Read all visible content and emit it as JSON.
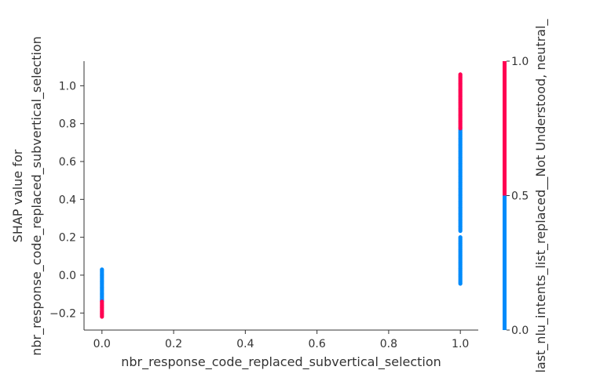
{
  "chart_data": {
    "type": "scatter",
    "title": "",
    "xlabel": "nbr_response_code_replaced_subvertical_selection",
    "ylabel_lines": [
      "SHAP value for",
      "nbr_response_code_replaced_subvertical_selection"
    ],
    "xlim": [
      -0.05,
      1.05
    ],
    "ylim": [
      -0.29,
      1.13
    ],
    "xticks": [
      0.0,
      0.2,
      0.4,
      0.6,
      0.8,
      1.0
    ],
    "xtick_labels": [
      "0.0",
      "0.2",
      "0.4",
      "0.6",
      "0.8",
      "1.0"
    ],
    "yticks": [
      -0.2,
      0.0,
      0.2,
      0.4,
      0.6,
      0.8,
      1.0
    ],
    "ytick_labels": [
      "−0.2",
      "0.0",
      "0.2",
      "0.4",
      "0.6",
      "0.8",
      "1.0"
    ],
    "grid": false,
    "point_colors": {
      "low": "#008bfb",
      "high": "#ff0052"
    },
    "colorbar": {
      "label": "last_nlu_intents_list_replaced__Not Understood, neutral_",
      "ticks": [
        0.0,
        0.5,
        1.0
      ],
      "tick_labels": [
        "0.0",
        "0.5",
        "1.0"
      ],
      "split_value": 0.5
    },
    "series": [
      {
        "x": 0.0,
        "y_range": [
          -0.14,
          0.03
        ],
        "color_value": 0.0
      },
      {
        "x": 0.0,
        "y_range": [
          -0.22,
          -0.14
        ],
        "color_value": 1.0
      },
      {
        "x": 1.0,
        "y_range": [
          -0.05,
          0.2
        ],
        "color_value": 0.0
      },
      {
        "x": 1.0,
        "y_range": [
          0.23,
          0.77
        ],
        "color_value": 0.0
      },
      {
        "x": 1.0,
        "y_range": [
          0.77,
          1.06
        ],
        "color_value": 1.0
      }
    ]
  }
}
